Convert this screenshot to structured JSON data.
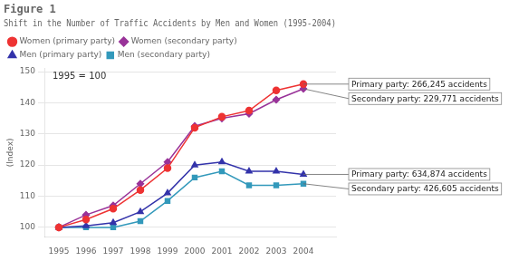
{
  "chart_data": {
    "type": "line",
    "title": "Figure 1",
    "subtitle": "Shift in the Number of Traffic Accidents by Men and Women (1995-2004)",
    "ylabel": "(Index)",
    "note": "1995 = 100",
    "x": [
      1995,
      1996,
      1997,
      1998,
      1999,
      2000,
      2001,
      2002,
      2003,
      2004
    ],
    "series": [
      {
        "name": "Women (primary party)",
        "color": "#ee3333",
        "marker": "circle",
        "values": [
          100,
          102.5,
          106.0,
          112.0,
          119.0,
          132.0,
          135.5,
          137.5,
          144.0,
          146.0
        ]
      },
      {
        "name": "Women (secondary party)",
        "color": "#993399",
        "marker": "diamond",
        "values": [
          100,
          104.0,
          107.0,
          114.0,
          121.0,
          132.5,
          135.0,
          136.5,
          141.0,
          144.5
        ]
      },
      {
        "name": "Men (primary party)",
        "color": "#3333aa",
        "marker": "triangle",
        "values": [
          100,
          100.5,
          101.5,
          105.0,
          111.0,
          120.0,
          121.0,
          118.0,
          118.0,
          117.0
        ]
      },
      {
        "name": "Men (secondary party)",
        "color": "#3399bb",
        "marker": "square",
        "values": [
          100,
          100.0,
          100.0,
          102.0,
          108.5,
          116.0,
          118.0,
          113.5,
          113.5,
          114.0
        ]
      }
    ],
    "xlim": [
      1994.5,
      2005.2
    ],
    "xticks": [
      1995,
      1996,
      1997,
      1998,
      1999,
      2000,
      2001,
      2002,
      2003,
      2004
    ],
    "ylim": [
      97,
      151
    ],
    "yticks": [
      100,
      110,
      120,
      130,
      140,
      150
    ],
    "grid": "y",
    "legend": "upper left",
    "annotations": [
      {
        "text": "Primary party: 266,245 accidents",
        "x": 2004,
        "y": 146.0
      },
      {
        "text": "Secondary party: 229,771 accidents",
        "x": 2004,
        "y": 144.5
      },
      {
        "text": "Primary party: 634,874 accidents",
        "x": 2004,
        "y": 117.0
      },
      {
        "text": "Secondary party: 426,605 accidents",
        "x": 2004,
        "y": 114.0
      }
    ]
  }
}
